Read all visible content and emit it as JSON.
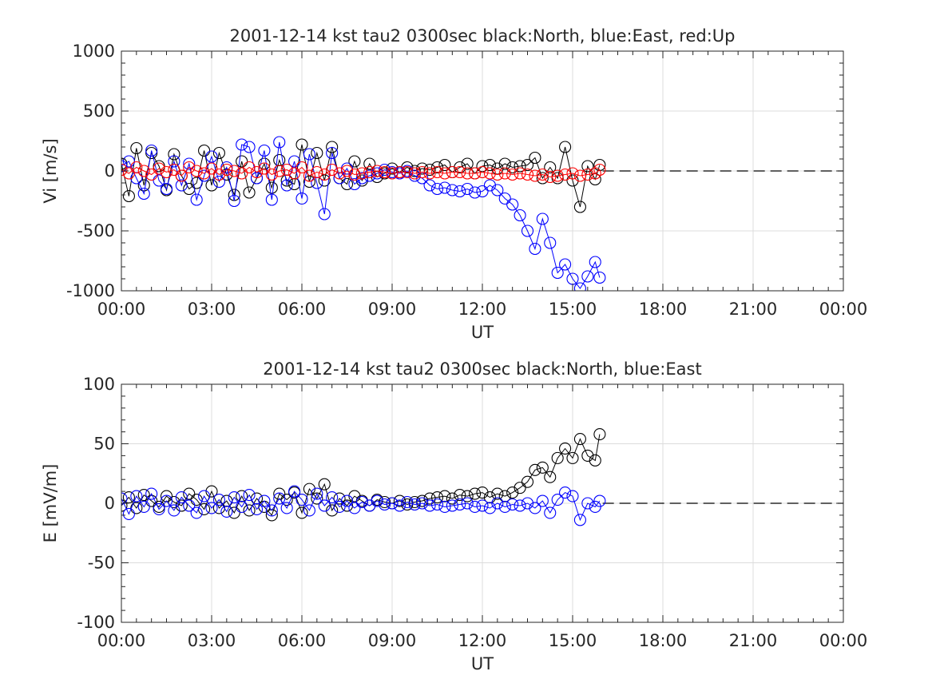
{
  "chart_data": [
    {
      "type": "line",
      "title": "2001-12-14 kst tau2 0300sec black:North, blue:East, red:Up",
      "xlabel": "UT",
      "ylabel": "Vi [m/s]",
      "xlim": [
        0,
        24
      ],
      "ylim": [
        -1000,
        1000
      ],
      "x_ticks": [
        0,
        3,
        6,
        9,
        12,
        15,
        18,
        21,
        24
      ],
      "x_tick_labels": [
        "00:00",
        "03:00",
        "06:00",
        "09:00",
        "12:00",
        "15:00",
        "18:00",
        "21:00",
        "00:00"
      ],
      "y_ticks": [
        -1000,
        -500,
        0,
        500,
        1000
      ],
      "y_tick_labels": [
        "-1000",
        "-500",
        "0",
        "500",
        "1000"
      ],
      "grid": true,
      "marker": "open-circle",
      "zero_line": {
        "from": 16.0,
        "to": 24,
        "style": "dashed",
        "color": "#000000"
      },
      "series": [
        {
          "name": "North",
          "color": "#000000",
          "x": [
            0.0,
            0.25,
            0.5,
            0.75,
            1.0,
            1.25,
            1.5,
            1.75,
            2.0,
            2.25,
            2.5,
            2.75,
            3.0,
            3.25,
            3.5,
            3.75,
            4.0,
            4.25,
            4.5,
            4.75,
            5.0,
            5.25,
            5.5,
            5.75,
            6.0,
            6.25,
            6.5,
            6.75,
            7.0,
            7.25,
            7.5,
            7.75,
            8.0,
            8.25,
            8.5,
            8.75,
            9.0,
            9.25,
            9.5,
            9.75,
            10.0,
            10.25,
            10.5,
            10.75,
            11.0,
            11.25,
            11.5,
            11.75,
            12.0,
            12.25,
            12.5,
            12.75,
            13.0,
            13.25,
            13.5,
            13.75,
            14.0,
            14.25,
            14.5,
            14.75,
            15.0,
            15.25,
            15.5,
            15.75,
            15.9
          ],
          "values": [
            60,
            -210,
            190,
            -120,
            150,
            40,
            -160,
            140,
            -40,
            -150,
            -100,
            170,
            -120,
            150,
            -30,
            -200,
            80,
            -180,
            -60,
            60,
            -140,
            90,
            -80,
            -110,
            220,
            -90,
            150,
            -80,
            200,
            -60,
            -110,
            80,
            -80,
            60,
            -50,
            -20,
            20,
            -10,
            30,
            0,
            20,
            10,
            30,
            50,
            -10,
            30,
            60,
            -20,
            40,
            50,
            20,
            60,
            30,
            40,
            50,
            110,
            -60,
            30,
            -60,
            200,
            -80,
            -300,
            40,
            -70,
            50
          ]
        },
        {
          "name": "East",
          "color": "#0000ff",
          "x": [
            0.0,
            0.25,
            0.5,
            0.75,
            1.0,
            1.25,
            1.5,
            1.75,
            2.0,
            2.25,
            2.5,
            2.75,
            3.0,
            3.25,
            3.5,
            3.75,
            4.0,
            4.25,
            4.5,
            4.75,
            5.0,
            5.25,
            5.5,
            5.75,
            6.0,
            6.25,
            6.5,
            6.75,
            7.0,
            7.25,
            7.5,
            7.75,
            8.0,
            8.25,
            8.5,
            8.75,
            9.0,
            9.25,
            9.5,
            9.75,
            10.0,
            10.25,
            10.5,
            10.75,
            11.0,
            11.25,
            11.5,
            11.75,
            12.0,
            12.25,
            12.5,
            12.75,
            13.0,
            13.25,
            13.5,
            13.75,
            14.0,
            14.25,
            14.5,
            14.75,
            15.0,
            15.25,
            15.5,
            15.75,
            15.9
          ],
          "values": [
            40,
            80,
            -60,
            -190,
            170,
            -80,
            -150,
            80,
            -120,
            60,
            -240,
            -40,
            120,
            -90,
            30,
            -250,
            220,
            200,
            -60,
            170,
            -240,
            240,
            -120,
            80,
            -230,
            140,
            -100,
            -360,
            150,
            -60,
            20,
            -110,
            -60,
            -40,
            -20,
            10,
            -10,
            -20,
            0,
            -40,
            -60,
            -120,
            -150,
            -140,
            -160,
            -170,
            -150,
            -180,
            -170,
            -120,
            -160,
            -230,
            -280,
            -370,
            -500,
            -650,
            -400,
            -600,
            -850,
            -780,
            -900,
            -980,
            -880,
            -760,
            -890
          ]
        },
        {
          "name": "Up",
          "color": "#ff0000",
          "x": [
            0.0,
            0.25,
            0.5,
            0.75,
            1.0,
            1.25,
            1.5,
            1.75,
            2.0,
            2.25,
            2.5,
            2.75,
            3.0,
            3.25,
            3.5,
            3.75,
            4.0,
            4.25,
            4.5,
            4.75,
            5.0,
            5.25,
            5.5,
            5.75,
            6.0,
            6.25,
            6.5,
            6.75,
            7.0,
            7.25,
            7.5,
            7.75,
            8.0,
            8.25,
            8.5,
            8.75,
            9.0,
            9.25,
            9.5,
            9.75,
            10.0,
            10.25,
            10.5,
            10.75,
            11.0,
            11.25,
            11.5,
            11.75,
            12.0,
            12.25,
            12.5,
            12.75,
            13.0,
            13.25,
            13.5,
            13.75,
            14.0,
            14.25,
            14.5,
            14.75,
            15.0,
            15.25,
            15.5,
            15.75,
            15.9
          ],
          "values": [
            10,
            -20,
            30,
            0,
            -30,
            20,
            -10,
            10,
            -40,
            30,
            0,
            -20,
            20,
            -30,
            10,
            0,
            -20,
            30,
            -10,
            20,
            -30,
            0,
            10,
            -20,
            30,
            -40,
            -10,
            -30,
            10,
            -20,
            0,
            -30,
            -20,
            -10,
            0,
            -10,
            -20,
            -10,
            -10,
            -20,
            -10,
            -20,
            -10,
            -20,
            -10,
            -10,
            -20,
            -20,
            -10,
            -20,
            -30,
            -20,
            -30,
            -20,
            -30,
            -40,
            -30,
            -50,
            -40,
            -30,
            -20,
            -40,
            -30,
            -20,
            10
          ]
        }
      ]
    },
    {
      "type": "line",
      "title": "2001-12-14 kst tau2 0300sec black:North, blue:East",
      "xlabel": "UT",
      "ylabel": "E [mV/m]",
      "xlim": [
        0,
        24
      ],
      "ylim": [
        -100,
        100
      ],
      "x_ticks": [
        0,
        3,
        6,
        9,
        12,
        15,
        18,
        21,
        24
      ],
      "x_tick_labels": [
        "00:00",
        "03:00",
        "06:00",
        "09:00",
        "12:00",
        "15:00",
        "18:00",
        "21:00",
        "00:00"
      ],
      "y_ticks": [
        -100,
        -50,
        0,
        50,
        100
      ],
      "y_tick_labels": [
        "-100",
        "-50",
        "0",
        "50",
        "100"
      ],
      "grid": true,
      "marker": "open-circle",
      "zero_line": {
        "from": 16.0,
        "to": 24,
        "style": "dashed",
        "color": "#000000"
      },
      "series": [
        {
          "name": "North",
          "color": "#000000",
          "x": [
            0.0,
            0.25,
            0.5,
            0.75,
            1.0,
            1.25,
            1.5,
            1.75,
            2.0,
            2.25,
            2.5,
            2.75,
            3.0,
            3.25,
            3.5,
            3.75,
            4.0,
            4.25,
            4.5,
            4.75,
            5.0,
            5.25,
            5.5,
            5.75,
            6.0,
            6.25,
            6.5,
            6.75,
            7.0,
            7.25,
            7.5,
            7.75,
            8.0,
            8.25,
            8.5,
            8.75,
            9.0,
            9.25,
            9.5,
            9.75,
            10.0,
            10.25,
            10.5,
            10.75,
            11.0,
            11.25,
            11.5,
            11.75,
            12.0,
            12.25,
            12.5,
            12.75,
            13.0,
            13.25,
            13.5,
            13.75,
            14.0,
            14.25,
            14.5,
            14.75,
            15.0,
            15.25,
            15.5,
            15.75,
            15.9
          ],
          "values": [
            -2,
            5,
            -4,
            7,
            2,
            -3,
            6,
            1,
            -2,
            8,
            3,
            -5,
            10,
            -4,
            2,
            -8,
            6,
            -6,
            4,
            -3,
            -10,
            8,
            3,
            9,
            -8,
            12,
            4,
            16,
            -6,
            4,
            -2,
            6,
            2,
            -2,
            3,
            1,
            0,
            2,
            -1,
            1,
            2,
            4,
            5,
            6,
            4,
            7,
            6,
            8,
            9,
            5,
            8,
            6,
            9,
            13,
            18,
            28,
            30,
            22,
            38,
            46,
            38,
            54,
            40,
            36,
            58
          ]
        },
        {
          "name": "East",
          "color": "#0000ff",
          "x": [
            0.0,
            0.25,
            0.5,
            0.75,
            1.0,
            1.25,
            1.5,
            1.75,
            2.0,
            2.25,
            2.5,
            2.75,
            3.0,
            3.25,
            3.5,
            3.75,
            4.0,
            4.25,
            4.5,
            4.75,
            5.0,
            5.25,
            5.5,
            5.75,
            6.0,
            6.25,
            6.5,
            6.75,
            7.0,
            7.25,
            7.5,
            7.75,
            8.0,
            8.25,
            8.5,
            8.75,
            9.0,
            9.25,
            9.5,
            9.75,
            10.0,
            10.25,
            10.5,
            10.75,
            11.0,
            11.25,
            11.5,
            11.75,
            12.0,
            12.25,
            12.5,
            12.75,
            13.0,
            13.25,
            13.5,
            13.75,
            14.0,
            14.25,
            14.5,
            14.75,
            15.0,
            15.25,
            15.5,
            15.75,
            15.9
          ],
          "values": [
            4,
            -9,
            6,
            -3,
            8,
            -5,
            2,
            -6,
            5,
            -2,
            -8,
            6,
            -4,
            3,
            -7,
            5,
            -3,
            7,
            -5,
            2,
            -6,
            4,
            -4,
            10,
            3,
            -6,
            8,
            -2,
            5,
            -3,
            2,
            -4,
            1,
            -2,
            2,
            -1,
            0,
            -2,
            1,
            -1,
            0,
            -2,
            -1,
            -3,
            -2,
            -1,
            0,
            -3,
            -2,
            -4,
            0,
            -3,
            -1,
            -2,
            0,
            -4,
            2,
            -8,
            3,
            9,
            6,
            -14,
            0,
            -3,
            2
          ]
        }
      ]
    }
  ]
}
